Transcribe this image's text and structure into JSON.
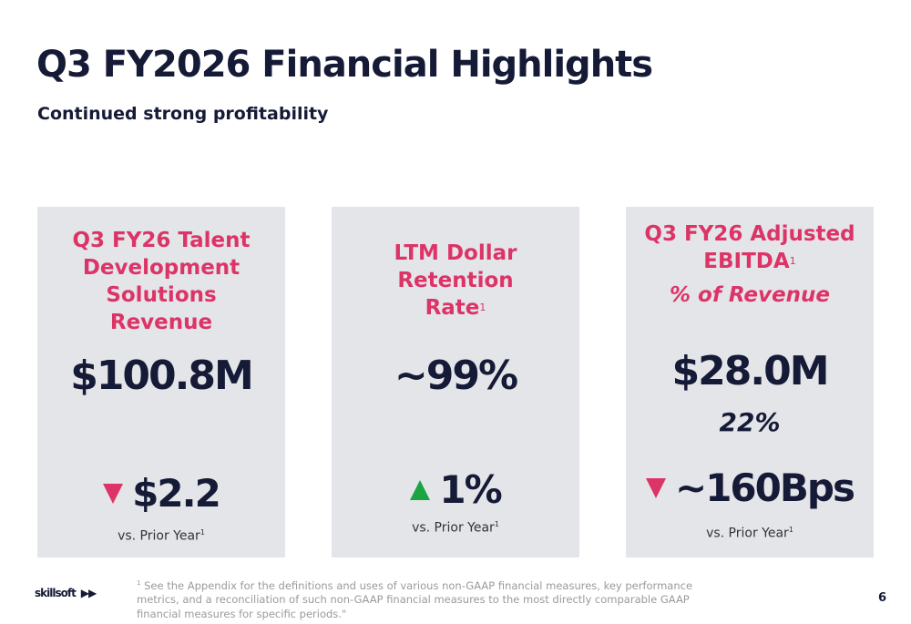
{
  "header": {
    "title": "Q3 FY2026 Financial Highlights",
    "subtitle": "Continued strong profitability"
  },
  "cards": [
    {
      "title": "Q3 FY26 Talent Development Solutions Revenue",
      "value": "$100.8M",
      "change": "$2.2",
      "direction": "down",
      "vs": "vs. Prior Year",
      "footnote": "1"
    },
    {
      "title": "LTM Dollar Retention Rate",
      "footnote_title": "1",
      "value": "~99%",
      "change": "1%",
      "direction": "up",
      "vs": "vs. Prior Year",
      "footnote": "1"
    },
    {
      "title": "Q3 FY26 Adjusted EBITDA",
      "footnote_title": "1",
      "subtitle": "% of Revenue",
      "value": "$28.0M",
      "percent": "22%",
      "change": "~160Bps",
      "direction": "down",
      "vs": "vs. Prior Year",
      "footnote": "1"
    }
  ],
  "colors": {
    "accent": "#dc3467",
    "up": "#1aa542",
    "down": "#dc3467",
    "card_bg": "#e4e5e9"
  },
  "footer": {
    "logo": "skillsoft",
    "footnote_mark": "1",
    "footnote": "See the Appendix for the definitions and uses of various non-GAAP financial measures, key performance metrics, and a reconciliation of such non-GAAP financial measures to the most directly comparable GAAP financial measures for specific periods.\"",
    "page": "6"
  }
}
